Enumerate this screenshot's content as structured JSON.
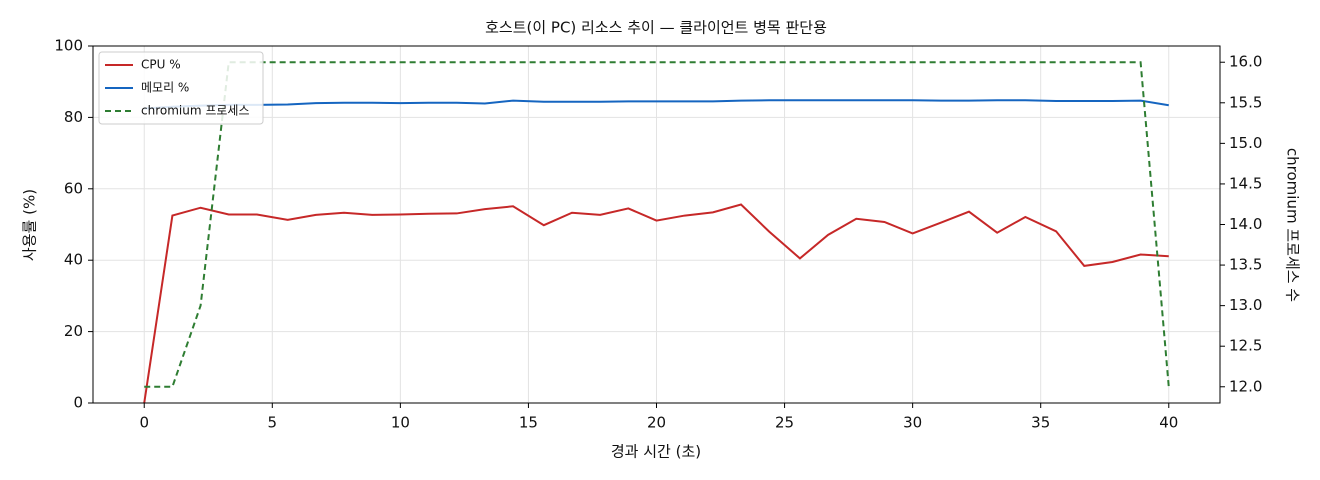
{
  "chart_data": {
    "type": "line",
    "title": "호스트(이 PC) 리소스 추이 — 클라이언트 병목 판단용",
    "xlabel": "경과 시간 (초)",
    "ylabel": "사용률 (%)",
    "y2label": "chromium 프로세스 수",
    "x": [
      0,
      1.1,
      2.2,
      3.3,
      4.4,
      5.6,
      6.7,
      7.8,
      8.9,
      10,
      11.1,
      12.2,
      13.3,
      14.4,
      15.6,
      16.7,
      17.8,
      18.9,
      20,
      21.1,
      22.2,
      23.3,
      24.4,
      25.6,
      26.7,
      27.8,
      28.9,
      30,
      31.1,
      32.2,
      33.3,
      34.4,
      35.6,
      36.7,
      37.8,
      38.9,
      40
    ],
    "series": [
      {
        "name": "CPU %",
        "color": "#c62828",
        "linestyle": "solid",
        "values": [
          0,
          52.5,
          54.7,
          52.8,
          52.8,
          51.3,
          52.7,
          53.3,
          52.7,
          52.8,
          53.0,
          53.1,
          54.3,
          55.1,
          49.8,
          53.3,
          52.7,
          54.5,
          51.1,
          52.5,
          53.4,
          55.6,
          48.0,
          40.5,
          47.1,
          51.6,
          50.7,
          47.5,
          50.5,
          53.6,
          47.7,
          52.1,
          48.1,
          38.4,
          39.5,
          41.6,
          41.1
        ]
      },
      {
        "name": "메모리 %",
        "color": "#1565c0",
        "linestyle": "solid",
        "values": [
          82.5,
          83.0,
          83.3,
          83.5,
          83.5,
          83.6,
          84.0,
          84.1,
          84.1,
          84.0,
          84.1,
          84.1,
          83.9,
          84.7,
          84.4,
          84.4,
          84.4,
          84.5,
          84.5,
          84.5,
          84.5,
          84.7,
          84.8,
          84.8,
          84.8,
          84.8,
          84.8,
          84.8,
          84.7,
          84.7,
          84.8,
          84.8,
          84.6,
          84.6,
          84.6,
          84.7,
          83.4
        ]
      },
      {
        "name": "chromium 프로세스",
        "color": "#2e7d32",
        "linestyle": "dashed",
        "axis": "y2",
        "values": [
          12,
          12,
          13,
          16,
          16,
          16,
          16,
          16,
          16,
          16,
          16,
          16,
          16,
          16,
          16,
          16,
          16,
          16,
          16,
          16,
          16,
          16,
          16,
          16,
          16,
          16,
          16,
          16,
          16,
          16,
          16,
          16,
          16,
          16,
          16,
          16,
          12
        ]
      }
    ],
    "xlim": [
      -2,
      42
    ],
    "xticks": [
      0,
      5,
      10,
      15,
      20,
      25,
      30,
      35,
      40
    ],
    "ylim": [
      0,
      100
    ],
    "yticks": [
      0,
      20,
      40,
      60,
      80,
      100
    ],
    "y2lim": [
      11.8,
      16.2
    ],
    "y2ticks": [
      {
        "value": 12,
        "label": "12.0"
      },
      {
        "value": 12.5,
        "label": "12.5"
      },
      {
        "value": 13,
        "label": "13.0"
      },
      {
        "value": 13.5,
        "label": "13.5"
      },
      {
        "value": 14,
        "label": "14.0"
      },
      {
        "value": 14.5,
        "label": "14.5"
      },
      {
        "value": 15,
        "label": "15.0"
      },
      {
        "value": 15.5,
        "label": "15.5"
      },
      {
        "value": 16,
        "label": "16.0"
      }
    ],
    "grid": true,
    "legend": "upper-left"
  }
}
